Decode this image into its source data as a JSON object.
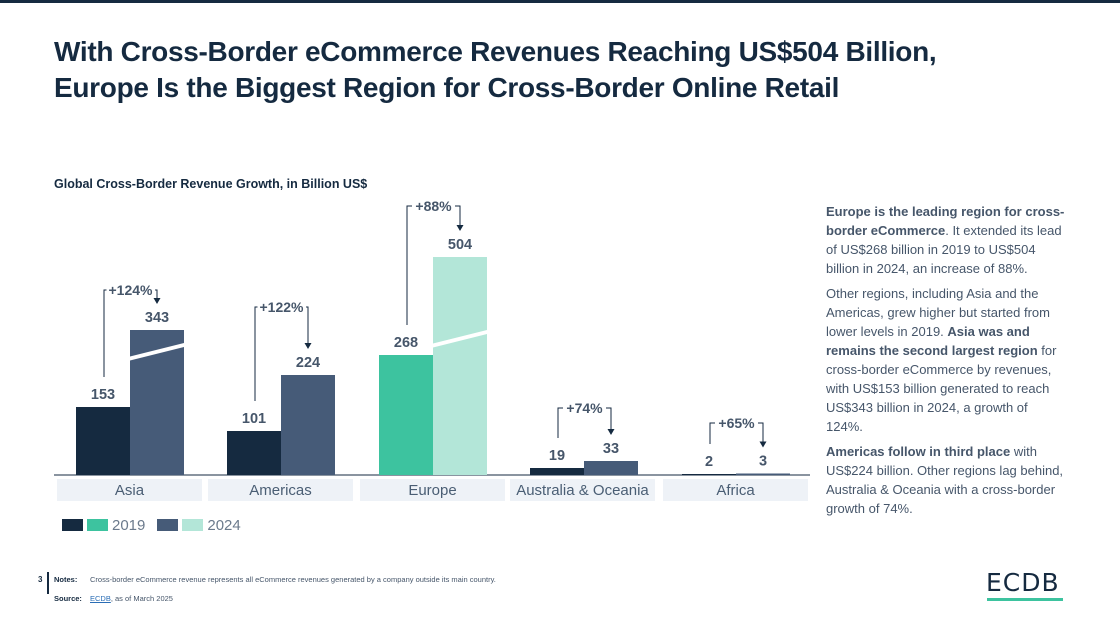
{
  "title_lines": [
    "With Cross-Border eCommerce Revenues Reaching US$504 Billion,",
    "Europe Is the Biggest Region for Cross-Border Online Retail"
  ],
  "chart_title": "Global Cross-Border Revenue Growth, in Billion US$",
  "chart_data": {
    "type": "bar",
    "title": "Global Cross-Border Revenue Growth, in Billion US$",
    "categories": [
      "Asia",
      "Americas",
      "Europe",
      "Australia & Oceania",
      "Africa"
    ],
    "series": [
      {
        "name": "2019",
        "values": [
          153,
          101,
          268,
          19,
          2
        ]
      },
      {
        "name": "2024",
        "values": [
          343,
          224,
          504,
          33,
          3
        ]
      }
    ],
    "growth": [
      "+124%",
      "+122%",
      "+88%",
      "+74%",
      "+65%"
    ],
    "axis_breaks": [
      "Asia",
      "Europe"
    ],
    "highlight_category": "Europe",
    "colors": {
      "2019": "#152a40",
      "2024": "#465b78",
      "2019_highlight": "#3dc39f",
      "2024_highlight": "#b3e6d8"
    },
    "legend_position": "bottom-left",
    "grid": false
  },
  "legend": [
    {
      "colors": [
        "#152a40",
        "#3dc39f"
      ],
      "label": "2019"
    },
    {
      "colors": [
        "#465b78",
        "#b3e6d8"
      ],
      "label": "2024"
    }
  ],
  "side_text": {
    "p1_bold": "Europe is the leading region for cross-border eCommerce",
    "p1_rest": ". It extended its lead of US$268 billion in 2019 to US$504 billion in 2024, an increase of 88%.",
    "p2_a": "Other regions, including Asia and the Americas, grew higher but started from lower levels in 2019. ",
    "p2_bold": "Asia was and remains the second largest region",
    "p2_b": " for cross-border eCommerce by revenues, with US$153 billion generated to reach US$343 billion in 2024, a growth of 124%.",
    "p3_bold": "Americas follow in third place",
    "p3_rest": " with US$224 billion. Other regions lag behind, Australia & Oceania with a cross-border growth of 74%."
  },
  "footer": {
    "page_number": "3",
    "notes_label": "Notes:",
    "notes_text": "Cross-border eCommerce revenue represents all eCommerce revenues generated by a company outside its main country.",
    "source_label": "Source:",
    "source_link": "ECDB",
    "source_rest": ", as of March 2025"
  },
  "logo": "ECDB"
}
